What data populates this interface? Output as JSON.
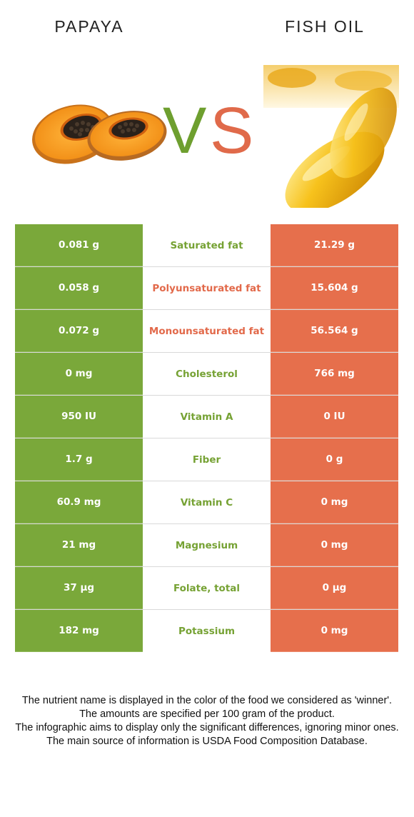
{
  "left_food": {
    "name": "PAPAYA",
    "color": "#7aa83a"
  },
  "right_food": {
    "name": "FISH OIL",
    "color": "#e66f4c"
  },
  "vs": {
    "v": "V",
    "s": "S"
  },
  "rows": [
    {
      "left": "0.081 g",
      "nutrient": "Saturated fat",
      "right": "21.29 g",
      "winner": "left"
    },
    {
      "left": "0.058 g",
      "nutrient": "Polyunsaturated fat",
      "right": "15.604 g",
      "winner": "right"
    },
    {
      "left": "0.072 g",
      "nutrient": "Monounsaturated fat",
      "right": "56.564 g",
      "winner": "right"
    },
    {
      "left": "0 mg",
      "nutrient": "Cholesterol",
      "right": "766 mg",
      "winner": "left"
    },
    {
      "left": "950 IU",
      "nutrient": "Vitamin A",
      "right": "0 IU",
      "winner": "left"
    },
    {
      "left": "1.7 g",
      "nutrient": "Fiber",
      "right": "0 g",
      "winner": "left"
    },
    {
      "left": "60.9 mg",
      "nutrient": "Vitamin C",
      "right": "0 mg",
      "winner": "left"
    },
    {
      "left": "21 mg",
      "nutrient": "Magnesium",
      "right": "0 mg",
      "winner": "left"
    },
    {
      "left": "37 µg",
      "nutrient": "Folate, total",
      "right": "0 µg",
      "winner": "left"
    },
    {
      "left": "182 mg",
      "nutrient": "Potassium",
      "right": "0 mg",
      "winner": "left"
    }
  ],
  "footer": {
    "line1": "The nutrient name is displayed in the color of the food we considered as 'winner'.",
    "line2": "The amounts are specified per 100 gram of the product.",
    "line3": "The infographic aims to display only the significant differences, ignoring minor ones.",
    "line4": "The main source of information is USDA Food Composition Database."
  }
}
